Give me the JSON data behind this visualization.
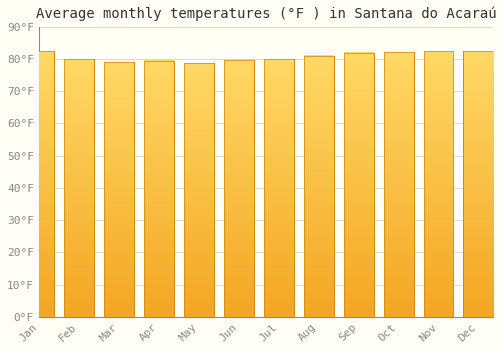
{
  "title": "Average monthly temperatures (°F ) in Santana do Acaraú",
  "months": [
    "Jan",
    "Feb",
    "Mar",
    "Apr",
    "May",
    "Jun",
    "Jul",
    "Aug",
    "Sep",
    "Oct",
    "Nov",
    "Dec"
  ],
  "values": [
    82.5,
    80.0,
    79.0,
    79.5,
    78.8,
    79.8,
    80.0,
    81.0,
    82.0,
    82.2,
    82.5,
    82.5
  ],
  "bar_color_bottom": "#F5A623",
  "bar_color_top": "#FFD966",
  "bar_edge_color": "#C8860A",
  "ylim": [
    0,
    90
  ],
  "yticks": [
    0,
    10,
    20,
    30,
    40,
    50,
    60,
    70,
    80,
    90
  ],
  "ytick_labels": [
    "0°F",
    "10°F",
    "20°F",
    "30°F",
    "40°F",
    "50°F",
    "60°F",
    "70°F",
    "80°F",
    "90°F"
  ],
  "bg_color": "#FFFFF5",
  "grid_color": "#DDDDCC",
  "title_fontsize": 10,
  "tick_fontsize": 8,
  "font_family": "monospace",
  "bar_width": 0.75,
  "figsize": [
    5.0,
    3.5
  ],
  "dpi": 100
}
